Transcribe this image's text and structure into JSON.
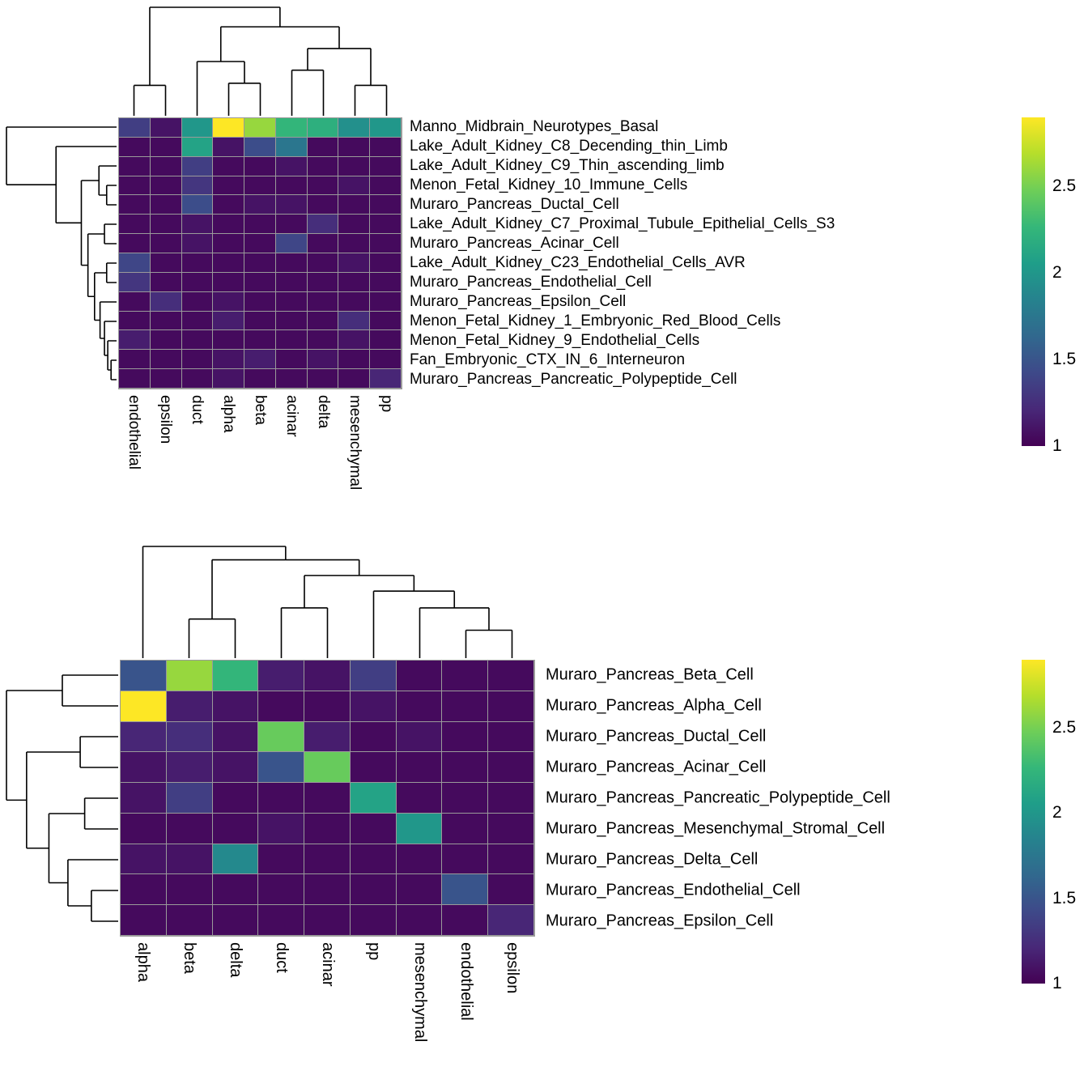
{
  "colors": {
    "background": "#ffffff",
    "dendrogram_line": "#000000",
    "grid_line": "#9a9a9a",
    "text": "#000000",
    "viridis": [
      "#440154",
      "#482878",
      "#3e4989",
      "#31688e",
      "#26828e",
      "#1f9e89",
      "#35b779",
      "#6ece58",
      "#b5de2b",
      "#fde725"
    ]
  },
  "chart_data": [
    {
      "type": "heatmap",
      "title": "",
      "colormap": "viridis",
      "legend_position": "right",
      "value_range": [
        1,
        2.9
      ],
      "colorbar_ticks": [
        1,
        1.5,
        2,
        2.5
      ],
      "columns": [
        "endothelial",
        "epsilon",
        "duct",
        "alpha",
        "beta",
        "acinar",
        "delta",
        "mesenchymal",
        "pp"
      ],
      "rows": [
        "Manno_Midbrain_Neurotypes_Basal",
        "Lake_Adult_Kidney_C8_Decending_thin_Limb",
        "Lake_Adult_Kidney_C9_Thin_ascending_limb",
        "Menon_Fetal_Kidney_10_Immune_Cells",
        "Muraro_Pancreas_Ductal_Cell",
        "Lake_Adult_Kidney_C7_Proximal_Tubule_Epithelial_Cells_S3",
        "Muraro_Pancreas_Acinar_Cell",
        "Lake_Adult_Kidney_C23_Endothelial_Cells_AVR",
        "Muraro_Pancreas_Endothelial_Cell",
        "Muraro_Pancreas_Epsilon_Cell",
        "Menon_Fetal_Kidney_1_Embryonic_Red_Blood_Cells",
        "Menon_Fetal_Kidney_9_Endothelial_Cells",
        "Fan_Embryonic_CTX_IN_6_Interneuron",
        "Muraro_Pancreas_Pancreatic_Polypeptide_Cell"
      ],
      "values": [
        [
          1.35,
          1.1,
          2.0,
          2.9,
          2.6,
          2.25,
          2.2,
          1.95,
          2.0
        ],
        [
          1.05,
          1.05,
          2.1,
          1.1,
          1.45,
          1.75,
          1.05,
          1.05,
          1.05
        ],
        [
          1.05,
          1.05,
          1.35,
          1.05,
          1.05,
          1.1,
          1.05,
          1.05,
          1.05
        ],
        [
          1.05,
          1.05,
          1.3,
          1.05,
          1.05,
          1.05,
          1.05,
          1.1,
          1.05
        ],
        [
          1.05,
          1.05,
          1.45,
          1.05,
          1.1,
          1.1,
          1.05,
          1.05,
          1.05
        ],
        [
          1.05,
          1.05,
          1.1,
          1.05,
          1.05,
          1.05,
          1.25,
          1.05,
          1.05
        ],
        [
          1.05,
          1.05,
          1.1,
          1.05,
          1.05,
          1.4,
          1.05,
          1.05,
          1.05
        ],
        [
          1.4,
          1.05,
          1.05,
          1.05,
          1.05,
          1.05,
          1.05,
          1.1,
          1.05
        ],
        [
          1.3,
          1.05,
          1.05,
          1.05,
          1.05,
          1.05,
          1.05,
          1.05,
          1.05
        ],
        [
          1.05,
          1.25,
          1.05,
          1.1,
          1.05,
          1.05,
          1.05,
          1.05,
          1.05
        ],
        [
          1.05,
          1.05,
          1.05,
          1.15,
          1.05,
          1.05,
          1.05,
          1.25,
          1.05
        ],
        [
          1.15,
          1.05,
          1.05,
          1.05,
          1.05,
          1.05,
          1.05,
          1.1,
          1.05
        ],
        [
          1.05,
          1.05,
          1.05,
          1.1,
          1.15,
          1.05,
          1.1,
          1.05,
          1.05
        ],
        [
          1.05,
          1.05,
          1.05,
          1.1,
          1.05,
          1.05,
          1.05,
          1.05,
          1.2
        ]
      ],
      "col_dendrogram": {
        "h": 1.0,
        "c": [
          {
            "h": 0.28,
            "c": [
              0,
              1
            ]
          },
          {
            "h": 0.82,
            "c": [
              {
                "h": 0.5,
                "c": [
                  2,
                  {
                    "h": 0.3,
                    "c": [
                      3,
                      4
                    ]
                  }
                ]
              },
              {
                "h": 0.62,
                "c": [
                  {
                    "h": 0.42,
                    "c": [
                      5,
                      6
                    ]
                  },
                  {
                    "h": 0.28,
                    "c": [
                      7,
                      8
                    ]
                  }
                ]
              }
            ]
          }
        ]
      },
      "row_dendrogram": {
        "h": 1.0,
        "c": [
          0,
          {
            "h": 0.55,
            "c": [
              1,
              {
                "h": 0.32,
                "c": [
                  {
                    "h": 0.16,
                    "c": [
                      2,
                      {
                        "h": 0.09,
                        "c": [
                          3,
                          4
                        ]
                      }
                    ]
                  },
                  {
                    "h": 0.26,
                    "c": [
                      {
                        "h": 0.11,
                        "c": [
                          5,
                          6
                        ]
                      },
                      {
                        "h": 0.2,
                        "c": [
                          {
                            "h": 0.09,
                            "c": [
                              7,
                              8
                            ]
                          },
                          {
                            "h": 0.15,
                            "c": [
                              9,
                              {
                                "h": 0.11,
                                "c": [
                                  10,
                                  {
                                    "h": 0.08,
                                    "c": [
                                      11,
                                      {
                                        "h": 0.05,
                                        "c": [
                                          12,
                                          13
                                        ]
                                      }
                                    ]
                                  }
                                ]
                              }
                            ]
                          }
                        ]
                      }
                    ]
                  }
                ]
              }
            ]
          }
        ]
      }
    },
    {
      "type": "heatmap",
      "title": "",
      "colormap": "viridis",
      "legend_position": "right",
      "value_range": [
        1,
        2.9
      ],
      "colorbar_ticks": [
        1,
        1.5,
        2,
        2.5
      ],
      "columns": [
        "alpha",
        "beta",
        "delta",
        "duct",
        "acinar",
        "pp",
        "mesenchymal",
        "endothelial",
        "epsilon"
      ],
      "rows": [
        "Muraro_Pancreas_Beta_Cell",
        "Muraro_Pancreas_Alpha_Cell",
        "Muraro_Pancreas_Ductal_Cell",
        "Muraro_Pancreas_Acinar_Cell",
        "Muraro_Pancreas_Pancreatic_Polypeptide_Cell",
        "Muraro_Pancreas_Mesenchymal_Stromal_Cell",
        "Muraro_Pancreas_Delta_Cell",
        "Muraro_Pancreas_Endothelial_Cell",
        "Muraro_Pancreas_Epsilon_Cell"
      ],
      "values": [
        [
          1.5,
          2.6,
          2.25,
          1.15,
          1.1,
          1.35,
          1.05,
          1.05,
          1.05
        ],
        [
          2.9,
          1.15,
          1.1,
          1.05,
          1.05,
          1.1,
          1.05,
          1.05,
          1.05
        ],
        [
          1.2,
          1.25,
          1.1,
          2.45,
          1.15,
          1.05,
          1.1,
          1.05,
          1.05
        ],
        [
          1.1,
          1.15,
          1.1,
          1.5,
          2.45,
          1.05,
          1.05,
          1.05,
          1.05
        ],
        [
          1.1,
          1.35,
          1.05,
          1.05,
          1.05,
          2.1,
          1.05,
          1.05,
          1.05
        ],
        [
          1.05,
          1.05,
          1.05,
          1.1,
          1.05,
          1.05,
          2.0,
          1.05,
          1.05
        ],
        [
          1.1,
          1.1,
          1.9,
          1.05,
          1.05,
          1.05,
          1.05,
          1.05,
          1.05
        ],
        [
          1.05,
          1.05,
          1.05,
          1.05,
          1.05,
          1.05,
          1.05,
          1.5,
          1.05
        ],
        [
          1.05,
          1.05,
          1.05,
          1.05,
          1.05,
          1.05,
          1.05,
          1.05,
          1.2
        ]
      ],
      "col_dendrogram": {
        "h": 1.0,
        "c": [
          0,
          {
            "h": 0.88,
            "c": [
              {
                "h": 0.35,
                "c": [
                  1,
                  2
                ]
              },
              {
                "h": 0.74,
                "c": [
                  {
                    "h": 0.45,
                    "c": [
                      3,
                      4
                    ]
                  },
                  {
                    "h": 0.6,
                    "c": [
                      5,
                      {
                        "h": 0.45,
                        "c": [
                          6,
                          {
                            "h": 0.25,
                            "c": [
                              7,
                              8
                            ]
                          }
                        ]
                      }
                    ]
                  }
                ]
              }
            ]
          }
        ]
      },
      "row_dendrogram": {
        "h": 1.0,
        "c": [
          {
            "h": 0.5,
            "c": [
              0,
              1
            ]
          },
          {
            "h": 0.82,
            "c": [
              {
                "h": 0.34,
                "c": [
                  2,
                  3
                ]
              },
              {
                "h": 0.62,
                "c": [
                  {
                    "h": 0.3,
                    "c": [
                      4,
                      5
                    ]
                  },
                  {
                    "h": 0.45,
                    "c": [
                      6,
                      {
                        "h": 0.24,
                        "c": [
                          7,
                          8
                        ]
                      }
                    ]
                  }
                ]
              }
            ]
          }
        ]
      }
    }
  ]
}
